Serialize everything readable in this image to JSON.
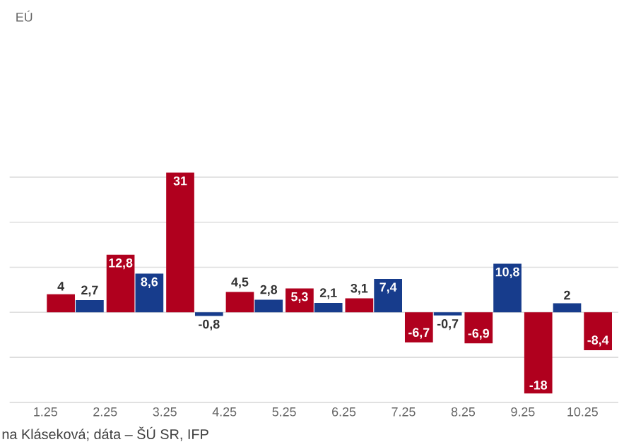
{
  "chart_data": {
    "type": "bar",
    "subtitle": "EÚ",
    "categories": [
      "1.25",
      "2.25",
      "3.25",
      "4.25",
      "5.25",
      "6.25",
      "7.25",
      "8.25",
      "9.25",
      "10.25"
    ],
    "series": [
      {
        "color": "#173c8c",
        "values": [
          null,
          2.7,
          8.6,
          -0.8,
          2.8,
          2.1,
          7.4,
          -0.7,
          10.8,
          2
        ],
        "value_labels": [
          null,
          "2,7",
          "8,6",
          "-0,8",
          "2,8",
          "2,1",
          "7,4",
          "-0,7",
          "10,8",
          "2"
        ]
      },
      {
        "color": "#b0001e",
        "values": [
          4,
          12.8,
          31,
          4.5,
          5.3,
          3.1,
          -6.7,
          -6.9,
          -18,
          -8.4
        ],
        "value_labels": [
          "4",
          "12,8",
          "31",
          "4,5",
          "5,3",
          "3,1",
          "-6,7",
          "-6,9",
          "-18",
          "-8,4"
        ]
      }
    ],
    "yticks": [
      {
        "value": -20,
        "label": null
      },
      {
        "value": -10,
        "label": null
      },
      {
        "value": 0,
        "label": null
      },
      {
        "value": 10,
        "label": null
      },
      {
        "value": 20,
        "label": null
      },
      {
        "value": 30,
        "label": null
      }
    ],
    "tick_labels": "x",
    "grid": "y",
    "annotations": [
      "na Kláseková; dáta – ŠÚ SR, IFP"
    ]
  }
}
